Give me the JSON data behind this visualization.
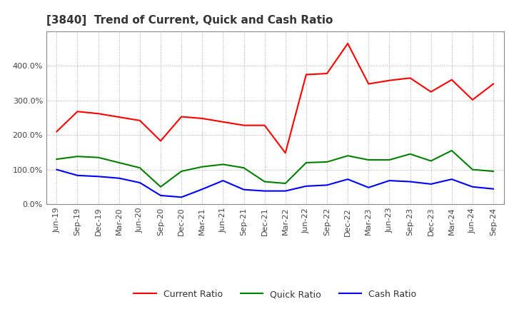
{
  "title": "[3840]  Trend of Current, Quick and Cash Ratio",
  "labels": [
    "Jun-19",
    "Sep-19",
    "Dec-19",
    "Mar-20",
    "Jun-20",
    "Sep-20",
    "Dec-20",
    "Mar-21",
    "Jun-21",
    "Sep-21",
    "Dec-21",
    "Mar-22",
    "Jun-22",
    "Sep-22",
    "Dec-22",
    "Mar-23",
    "Jun-23",
    "Sep-23",
    "Dec-23",
    "Mar-24",
    "Jun-24",
    "Sep-24"
  ],
  "current_ratio": [
    210,
    268,
    262,
    252,
    242,
    183,
    253,
    248,
    238,
    228,
    228,
    148,
    375,
    378,
    465,
    348,
    358,
    365,
    325,
    360,
    302,
    348
  ],
  "quick_ratio": [
    130,
    138,
    135,
    120,
    105,
    50,
    95,
    108,
    115,
    105,
    65,
    60,
    120,
    122,
    140,
    128,
    128,
    145,
    125,
    155,
    100,
    95
  ],
  "cash_ratio": [
    100,
    83,
    80,
    75,
    62,
    25,
    20,
    43,
    68,
    42,
    38,
    38,
    52,
    55,
    72,
    48,
    68,
    65,
    58,
    72,
    50,
    44
  ],
  "ylim": [
    0,
    500
  ],
  "yticks": [
    0,
    100,
    200,
    300,
    400
  ],
  "current_color": "#ff0000",
  "quick_color": "#008000",
  "cash_color": "#0000ff",
  "line_width": 1.5,
  "bg_color": "#ffffff",
  "plot_bg_color": "#ffffff",
  "grid_color": "#aaaaaa",
  "title_fontsize": 11,
  "legend_fontsize": 9,
  "tick_fontsize": 8
}
